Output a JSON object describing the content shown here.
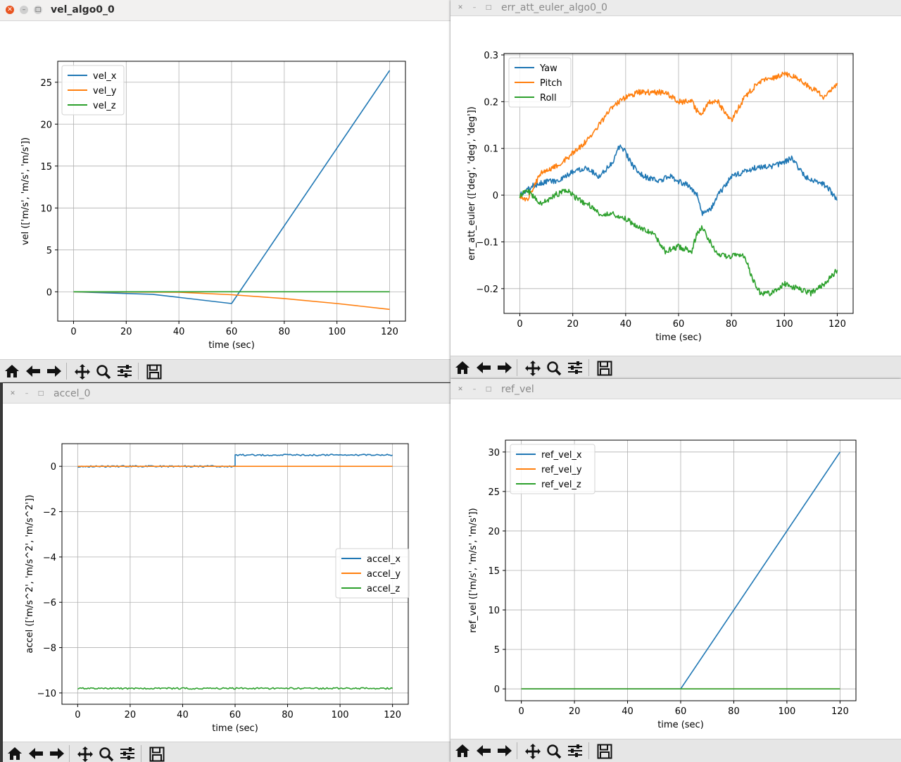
{
  "toolbar_icons": [
    "home-icon",
    "back-arrow-icon",
    "forward-arrow-icon",
    "pan-icon",
    "zoom-icon",
    "configure-subplots-icon",
    "save-icon"
  ],
  "colors": {
    "blue": "#1f77b4",
    "orange": "#ff7f0e",
    "green": "#2ca02c",
    "close_button": "#e95420"
  },
  "windows": [
    {
      "id": "vel",
      "title": "vel_algo0_0",
      "active": true
    },
    {
      "id": "err",
      "title": "err_att_euler_algo0_0",
      "active": false
    },
    {
      "id": "accel",
      "title": "accel_0",
      "active": false
    },
    {
      "id": "ref",
      "title": "ref_vel",
      "active": false
    }
  ],
  "chart_data": [
    {
      "type": "line",
      "xlabel": "time (sec)",
      "ylabel": "vel (['m/s', 'm/s', 'm/s'])",
      "xlim": [
        -6,
        126
      ],
      "ylim": [
        -3.5,
        27.5
      ],
      "xticks": [
        0,
        20,
        40,
        60,
        80,
        100,
        120
      ],
      "yticks": [
        0,
        5,
        10,
        15,
        20,
        25
      ],
      "grid": true,
      "legend": "upper-left",
      "series": [
        {
          "name": "vel_x",
          "color": "#1f77b4",
          "x": [
            0,
            30,
            60,
            120
          ],
          "y": [
            0,
            -0.3,
            -1.4,
            26.4
          ]
        },
        {
          "name": "vel_y",
          "color": "#ff7f0e",
          "x": [
            0,
            40,
            60,
            80,
            100,
            120
          ],
          "y": [
            0,
            -0.05,
            -0.35,
            -0.8,
            -1.4,
            -2.1
          ]
        },
        {
          "name": "vel_z",
          "color": "#2ca02c",
          "x": [
            0,
            120
          ],
          "y": [
            0,
            0
          ]
        }
      ]
    },
    {
      "type": "line",
      "xlabel": "time (sec)",
      "ylabel": "err_att_euler (['deg', 'deg', 'deg'])",
      "xlim": [
        -6,
        126
      ],
      "ylim": [
        -0.253,
        0.303
      ],
      "xticks": [
        0,
        20,
        40,
        60,
        80,
        100,
        120
      ],
      "yticks": [
        -0.2,
        -0.1,
        0.0,
        0.1,
        0.2,
        0.3
      ],
      "grid": true,
      "legend": "upper-left",
      "series": [
        {
          "name": "Yaw",
          "color": "#1f77b4",
          "noisy": true,
          "x": [
            0,
            5,
            10,
            15,
            20,
            25,
            30,
            35,
            38,
            40,
            43,
            47,
            52,
            57,
            60,
            64,
            67,
            69,
            72,
            75,
            80,
            85,
            90,
            95,
            100,
            103,
            105,
            108,
            112,
            116,
            120
          ],
          "y": [
            0.0,
            0.02,
            0.03,
            0.03,
            0.05,
            0.06,
            0.04,
            0.07,
            0.11,
            0.09,
            0.06,
            0.04,
            0.03,
            0.04,
            0.03,
            0.02,
            0.0,
            -0.04,
            -0.03,
            0.0,
            0.04,
            0.05,
            0.06,
            0.06,
            0.07,
            0.08,
            0.06,
            0.04,
            0.03,
            0.02,
            -0.01
          ]
        },
        {
          "name": "Pitch",
          "color": "#ff7f0e",
          "noisy": true,
          "x": [
            0,
            3,
            8,
            13,
            18,
            22,
            26,
            30,
            35,
            40,
            45,
            50,
            55,
            60,
            65,
            68,
            72,
            75,
            78,
            80,
            85,
            90,
            95,
            100,
            105,
            110,
            115,
            120
          ],
          "y": [
            0.0,
            -0.01,
            0.05,
            0.06,
            0.08,
            0.1,
            0.12,
            0.15,
            0.19,
            0.21,
            0.22,
            0.22,
            0.22,
            0.2,
            0.2,
            0.17,
            0.2,
            0.2,
            0.17,
            0.16,
            0.21,
            0.24,
            0.25,
            0.26,
            0.25,
            0.23,
            0.21,
            0.24
          ]
        },
        {
          "name": "Roll",
          "color": "#2ca02c",
          "noisy": true,
          "x": [
            0,
            3,
            8,
            13,
            18,
            22,
            26,
            30,
            35,
            40,
            45,
            50,
            55,
            60,
            65,
            67,
            69,
            72,
            75,
            80,
            85,
            88,
            91,
            95,
            100,
            105,
            110,
            115,
            120
          ],
          "y": [
            0.0,
            0.01,
            -0.02,
            0.0,
            0.01,
            -0.01,
            -0.02,
            -0.04,
            -0.04,
            -0.05,
            -0.07,
            -0.08,
            -0.12,
            -0.11,
            -0.12,
            -0.08,
            -0.07,
            -0.1,
            -0.13,
            -0.13,
            -0.13,
            -0.18,
            -0.21,
            -0.21,
            -0.19,
            -0.2,
            -0.21,
            -0.19,
            -0.16
          ]
        }
      ]
    },
    {
      "type": "line",
      "xlabel": "time (sec)",
      "ylabel": "accel (['m/s^2', 'm/s^2', 'm/s^2'])",
      "xlim": [
        -6,
        126
      ],
      "ylim": [
        -10.5,
        1.0
      ],
      "xticks": [
        0,
        20,
        40,
        60,
        80,
        100,
        120
      ],
      "yticks": [
        -10,
        -8,
        -6,
        -4,
        -2,
        0
      ],
      "grid": true,
      "legend": "center-right",
      "series": [
        {
          "name": "accel_x",
          "color": "#1f77b4",
          "noisy_small": true,
          "x": [
            0,
            60,
            60,
            120
          ],
          "y": [
            0,
            0,
            0.5,
            0.5
          ]
        },
        {
          "name": "accel_y",
          "color": "#ff7f0e",
          "x": [
            0,
            120
          ],
          "y": [
            0,
            0
          ]
        },
        {
          "name": "accel_z",
          "color": "#2ca02c",
          "noisy_small": true,
          "x": [
            0,
            120
          ],
          "y": [
            -9.8,
            -9.8
          ]
        }
      ]
    },
    {
      "type": "line",
      "xlabel": "time (sec)",
      "ylabel": "ref_vel (['m/s', 'm/s', 'm/s'])",
      "xlim": [
        -6,
        126
      ],
      "ylim": [
        -1.5,
        31.5
      ],
      "xticks": [
        0,
        20,
        40,
        60,
        80,
        100,
        120
      ],
      "yticks": [
        0,
        5,
        10,
        15,
        20,
        25,
        30
      ],
      "grid": true,
      "legend": "upper-left",
      "series": [
        {
          "name": "ref_vel_x",
          "color": "#1f77b4",
          "x": [
            0,
            60,
            120
          ],
          "y": [
            0,
            0,
            30
          ]
        },
        {
          "name": "ref_vel_y",
          "color": "#ff7f0e",
          "x": [
            0,
            120
          ],
          "y": [
            0,
            0
          ]
        },
        {
          "name": "ref_vel_z",
          "color": "#2ca02c",
          "x": [
            0,
            120
          ],
          "y": [
            0,
            0
          ]
        }
      ]
    }
  ]
}
